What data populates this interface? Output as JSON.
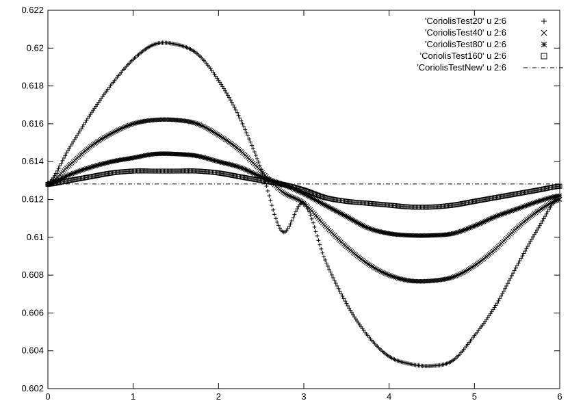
{
  "chart_data": {
    "type": "scatter",
    "title": "",
    "xlabel": "",
    "ylabel": "",
    "xlim": [
      0,
      6
    ],
    "ylim": [
      0.602,
      0.622
    ],
    "grid": false,
    "legend_position": "top-right",
    "x_ticks": [
      0,
      1,
      2,
      3,
      4,
      5,
      6
    ],
    "y_ticks": [
      0.602,
      0.604,
      0.606,
      0.608,
      0.61,
      0.612,
      0.614,
      0.616,
      0.618,
      0.62,
      0.622
    ],
    "x_tick_labels": [
      "0",
      "1",
      "2",
      "3",
      "4",
      "5",
      "6"
    ],
    "y_tick_labels": [
      "0.602",
      "0.604",
      "0.606",
      "0.608",
      "0.61",
      "0.612",
      "0.614",
      "0.616",
      "0.618",
      "0.62",
      "0.622"
    ],
    "series": [
      {
        "name": "'CoriolisTest20' u 2:6",
        "marker": "plus",
        "x": [
          0,
          0.25,
          0.5,
          0.75,
          1,
          1.25,
          1.5,
          1.75,
          2,
          2.25,
          2.5,
          2.75,
          3,
          3.25,
          3.5,
          3.75,
          4,
          4.25,
          4.5,
          4.75,
          5,
          5.25,
          5.5,
          5.75,
          6
        ],
        "y": [
          0.6128,
          0.6147,
          0.6165,
          0.6181,
          0.6194,
          0.6202,
          0.6202,
          0.6197,
          0.6183,
          0.6163,
          0.6136,
          0.6103,
          0.6118,
          0.6088,
          0.6065,
          0.6048,
          0.6037,
          0.6033,
          0.6032,
          0.6035,
          0.6048,
          0.6064,
          0.6085,
          0.6105,
          0.6122
        ]
      },
      {
        "name": "'CoriolisTest40' u 2:6",
        "marker": "cross",
        "x": [
          0,
          0.25,
          0.5,
          0.75,
          1,
          1.25,
          1.5,
          1.75,
          2,
          2.25,
          2.5,
          2.75,
          3,
          3.25,
          3.5,
          3.75,
          4,
          4.25,
          4.5,
          4.75,
          5,
          5.25,
          5.5,
          5.75,
          6
        ],
        "y": [
          0.6128,
          0.6138,
          0.6148,
          0.6155,
          0.616,
          0.6162,
          0.6162,
          0.616,
          0.6154,
          0.6146,
          0.6135,
          0.6124,
          0.6118,
          0.6106,
          0.6095,
          0.6086,
          0.608,
          0.6077,
          0.6077,
          0.6079,
          0.6085,
          0.6094,
          0.6105,
          0.6114,
          0.612
        ]
      },
      {
        "name": "'CoriolisTest80' u 2:6",
        "marker": "star",
        "x": [
          0,
          0.25,
          0.5,
          0.75,
          1,
          1.25,
          1.5,
          1.75,
          2,
          2.25,
          2.5,
          2.75,
          3,
          3.25,
          3.5,
          3.75,
          4,
          4.25,
          4.5,
          4.75,
          5,
          5.25,
          5.5,
          5.75,
          6
        ],
        "y": [
          0.6128,
          0.6133,
          0.6137,
          0.614,
          0.6142,
          0.6144,
          0.6144,
          0.6143,
          0.614,
          0.6137,
          0.6132,
          0.6128,
          0.6123,
          0.6117,
          0.6111,
          0.6105,
          0.6102,
          0.6101,
          0.6101,
          0.6102,
          0.6106,
          0.6111,
          0.6115,
          0.6119,
          0.6122
        ]
      },
      {
        "name": "'CoriolisTest160' u 2:6",
        "marker": "square",
        "x": [
          0,
          0.25,
          0.5,
          0.75,
          1,
          1.25,
          1.5,
          1.75,
          2,
          2.25,
          2.5,
          2.75,
          3,
          3.25,
          3.5,
          3.75,
          4,
          4.25,
          4.5,
          4.75,
          5,
          5.25,
          5.5,
          5.75,
          6
        ],
        "y": [
          0.6128,
          0.613,
          0.6132,
          0.6134,
          0.6135,
          0.6135,
          0.6135,
          0.6135,
          0.6134,
          0.6132,
          0.613,
          0.6128,
          0.6125,
          0.6121,
          0.6119,
          0.6118,
          0.6117,
          0.6116,
          0.6116,
          0.6117,
          0.6119,
          0.6121,
          0.6123,
          0.6125,
          0.6127
        ]
      },
      {
        "name": "'CoriolisTestNew' u 2:6",
        "marker": "line-dashdot",
        "x": [
          0,
          6
        ],
        "y": [
          0.61282,
          0.61282
        ]
      }
    ]
  }
}
